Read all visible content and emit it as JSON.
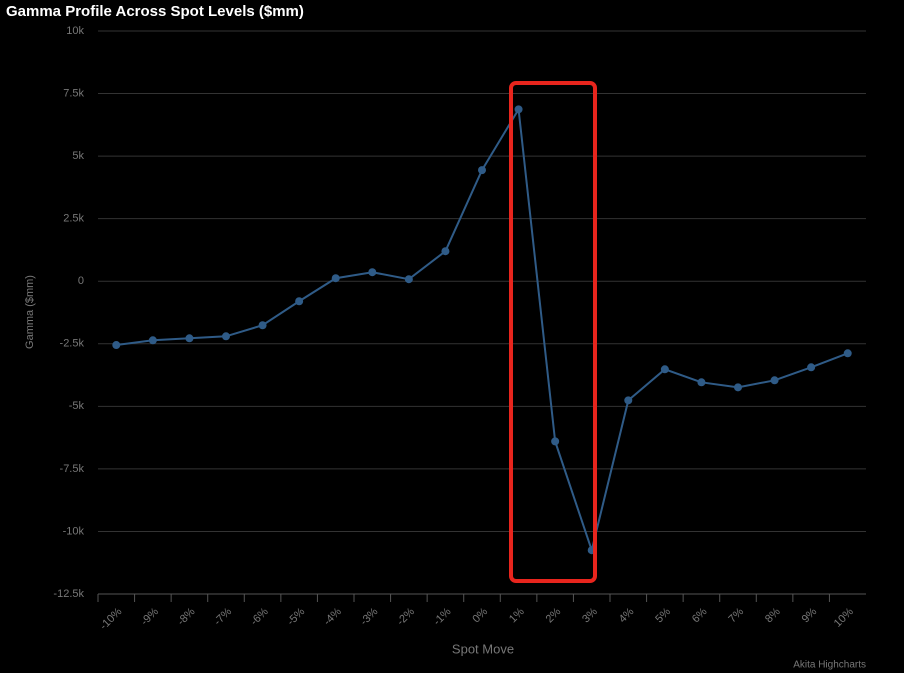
{
  "chart_data": {
    "type": "line",
    "title": "Gamma Profile Across Spot Levels ($mm)",
    "x_label": "Spot Move",
    "y_label": "Gamma ($mm)",
    "credit": "Akita Highcharts",
    "categories": [
      "-10%",
      "-9%",
      "-8%",
      "-7%",
      "-6%",
      "-5%",
      "-4%",
      "-3%",
      "-2%",
      "-1%",
      "0%",
      "1%",
      "2%",
      "3%",
      "4%",
      "5%",
      "6%",
      "7%",
      "8%",
      "9%",
      "10%"
    ],
    "series": [
      {
        "name": "Gamma",
        "color": "#2f5b87",
        "values": [
          -2550,
          -2360,
          -2280,
          -2200,
          -1760,
          -800,
          120,
          360,
          80,
          1200,
          4440,
          6870,
          -6400,
          -10750,
          -4760,
          -3520,
          -4040,
          -4240,
          -3960,
          -3440,
          -2880
        ]
      }
    ],
    "ylim": [
      -12500,
      10000
    ],
    "yticks": [
      {
        "value": -12500,
        "label": "-12.5k"
      },
      {
        "value": -10000,
        "label": "-10k"
      },
      {
        "value": -7500,
        "label": "-7.5k"
      },
      {
        "value": -5000,
        "label": "-5k"
      },
      {
        "value": -2500,
        "label": "-2.5k"
      },
      0,
      {
        "value": 2500,
        "label": "2.5k"
      },
      {
        "value": 5000,
        "label": "5k"
      },
      {
        "value": 7500,
        "label": "7.5k"
      },
      {
        "value": 10000,
        "label": "10k"
      }
    ],
    "grid": true
  }
}
